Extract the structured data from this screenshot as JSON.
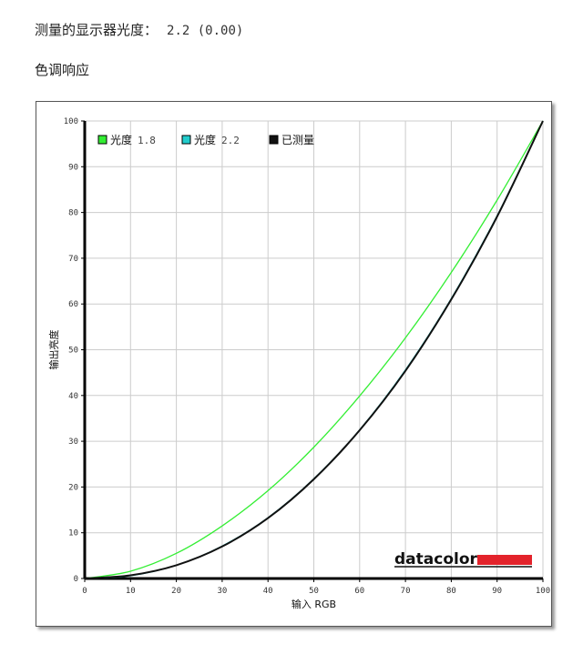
{
  "header": {
    "label": "测量的显示器光度：",
    "value": "2.2 (0.00)"
  },
  "section_title": "色调响应",
  "logo": {
    "text": "datacolor",
    "color": "#e3232b"
  },
  "chart_data": {
    "type": "line",
    "title": "",
    "xlabel": "输入 RGB",
    "ylabel": "输出亮度",
    "xlim": [
      0,
      100
    ],
    "ylim": [
      0,
      100
    ],
    "xticks": [
      0,
      10,
      20,
      30,
      40,
      50,
      60,
      70,
      80,
      90,
      100
    ],
    "yticks": [
      0,
      10,
      20,
      30,
      40,
      50,
      60,
      70,
      80,
      90,
      100
    ],
    "grid": true,
    "legend_placement": "top-left",
    "x": [
      0,
      10,
      20,
      30,
      40,
      50,
      60,
      70,
      80,
      90,
      100
    ],
    "series": [
      {
        "name": "光度",
        "name_value": "1.8",
        "color": "#33ee33",
        "values": [
          0,
          1.6,
          5.5,
          11.5,
          19.2,
          28.7,
          39.9,
          52.6,
          66.9,
          82.7,
          100
        ]
      },
      {
        "name": "光度",
        "name_value": "2.2",
        "color": "#22cccc",
        "values": [
          0,
          0.6,
          2.9,
          7.1,
          13.3,
          21.8,
          32.5,
          45.6,
          61.2,
          79.3,
          100
        ]
      },
      {
        "name": "已测量",
        "name_value": "",
        "color": "#111111",
        "values": [
          0,
          0.7,
          2.9,
          7.0,
          13.2,
          21.7,
          32.4,
          45.4,
          61.0,
          79.1,
          100
        ]
      }
    ]
  }
}
